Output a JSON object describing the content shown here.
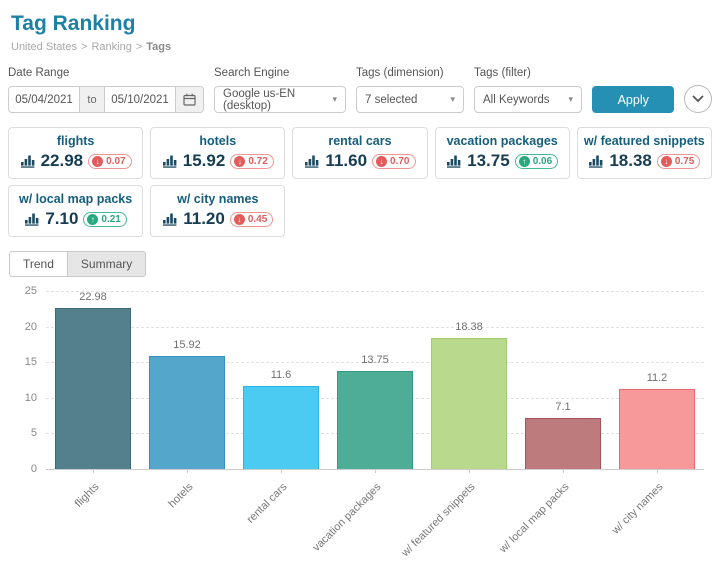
{
  "header": {
    "title": "Tag Ranking",
    "breadcrumb": [
      "United States",
      "Ranking",
      "Tags"
    ],
    "breadcrumb_separator": ">"
  },
  "filters": {
    "date_range": {
      "label": "Date Range",
      "start": "05/04/2021",
      "separator": "to",
      "end": "05/10/2021"
    },
    "search_engine": {
      "label": "Search Engine",
      "value": "Google us-EN (desktop)"
    },
    "tags_dimension": {
      "label": "Tags (dimension)",
      "value": "7 selected"
    },
    "tags_filter": {
      "label": "Tags (filter)",
      "value": "All Keywords"
    },
    "apply_label": "Apply"
  },
  "icons": {
    "caret": "▾",
    "up_arrow": "↑",
    "down_arrow": "↓"
  },
  "colors": {
    "accent": "#2590b4",
    "title": "#1d81a6",
    "delta_down": "#e25c5c",
    "delta_up": "#27a97c"
  },
  "cards": [
    {
      "name": "flights",
      "value": "22.98",
      "delta": "0.07",
      "direction": "down"
    },
    {
      "name": "hotels",
      "value": "15.92",
      "delta": "0.72",
      "direction": "down"
    },
    {
      "name": "rental cars",
      "value": "11.60",
      "delta": "0.70",
      "direction": "down"
    },
    {
      "name": "vacation packages",
      "value": "13.75",
      "delta": "0.06",
      "direction": "up"
    },
    {
      "name": "w/ featured snippets",
      "value": "18.38",
      "delta": "0.75",
      "direction": "down"
    },
    {
      "name": "w/ local map packs",
      "value": "7.10",
      "delta": "0.21",
      "direction": "up"
    },
    {
      "name": "w/ city names",
      "value": "11.20",
      "delta": "0.45",
      "direction": "down"
    }
  ],
  "tabs": [
    {
      "label": "Trend",
      "active": false
    },
    {
      "label": "Summary",
      "active": true
    }
  ],
  "chart_data": {
    "type": "bar",
    "title": "",
    "xlabel": "",
    "ylabel": "",
    "categories": [
      "flights",
      "hotels",
      "rental cars",
      "vacation packages",
      "w/ featured snippets",
      "w/ local map packs",
      "w/ city names"
    ],
    "values": [
      22.98,
      15.92,
      11.6,
      13.75,
      18.38,
      7.1,
      11.2
    ],
    "value_labels": [
      "22.98",
      "15.92",
      "11.6",
      "13.75",
      "18.38",
      "7.1",
      "11.2"
    ],
    "bar_colors": [
      "#54808d",
      "#55a6cb",
      "#4bcbf1",
      "#4ead96",
      "#b9d98d",
      "#bd7b7e",
      "#f7989b"
    ],
    "bar_border_colors": [
      "#3d6773",
      "#3590bd",
      "#26b6e5",
      "#349a7f",
      "#9fcc6e",
      "#a35357",
      "#f0686d"
    ],
    "ylim": [
      0,
      25
    ],
    "yticks": [
      0,
      5,
      10,
      15,
      20,
      25
    ],
    "grid": "dashed-horizontal",
    "legend": "none"
  }
}
